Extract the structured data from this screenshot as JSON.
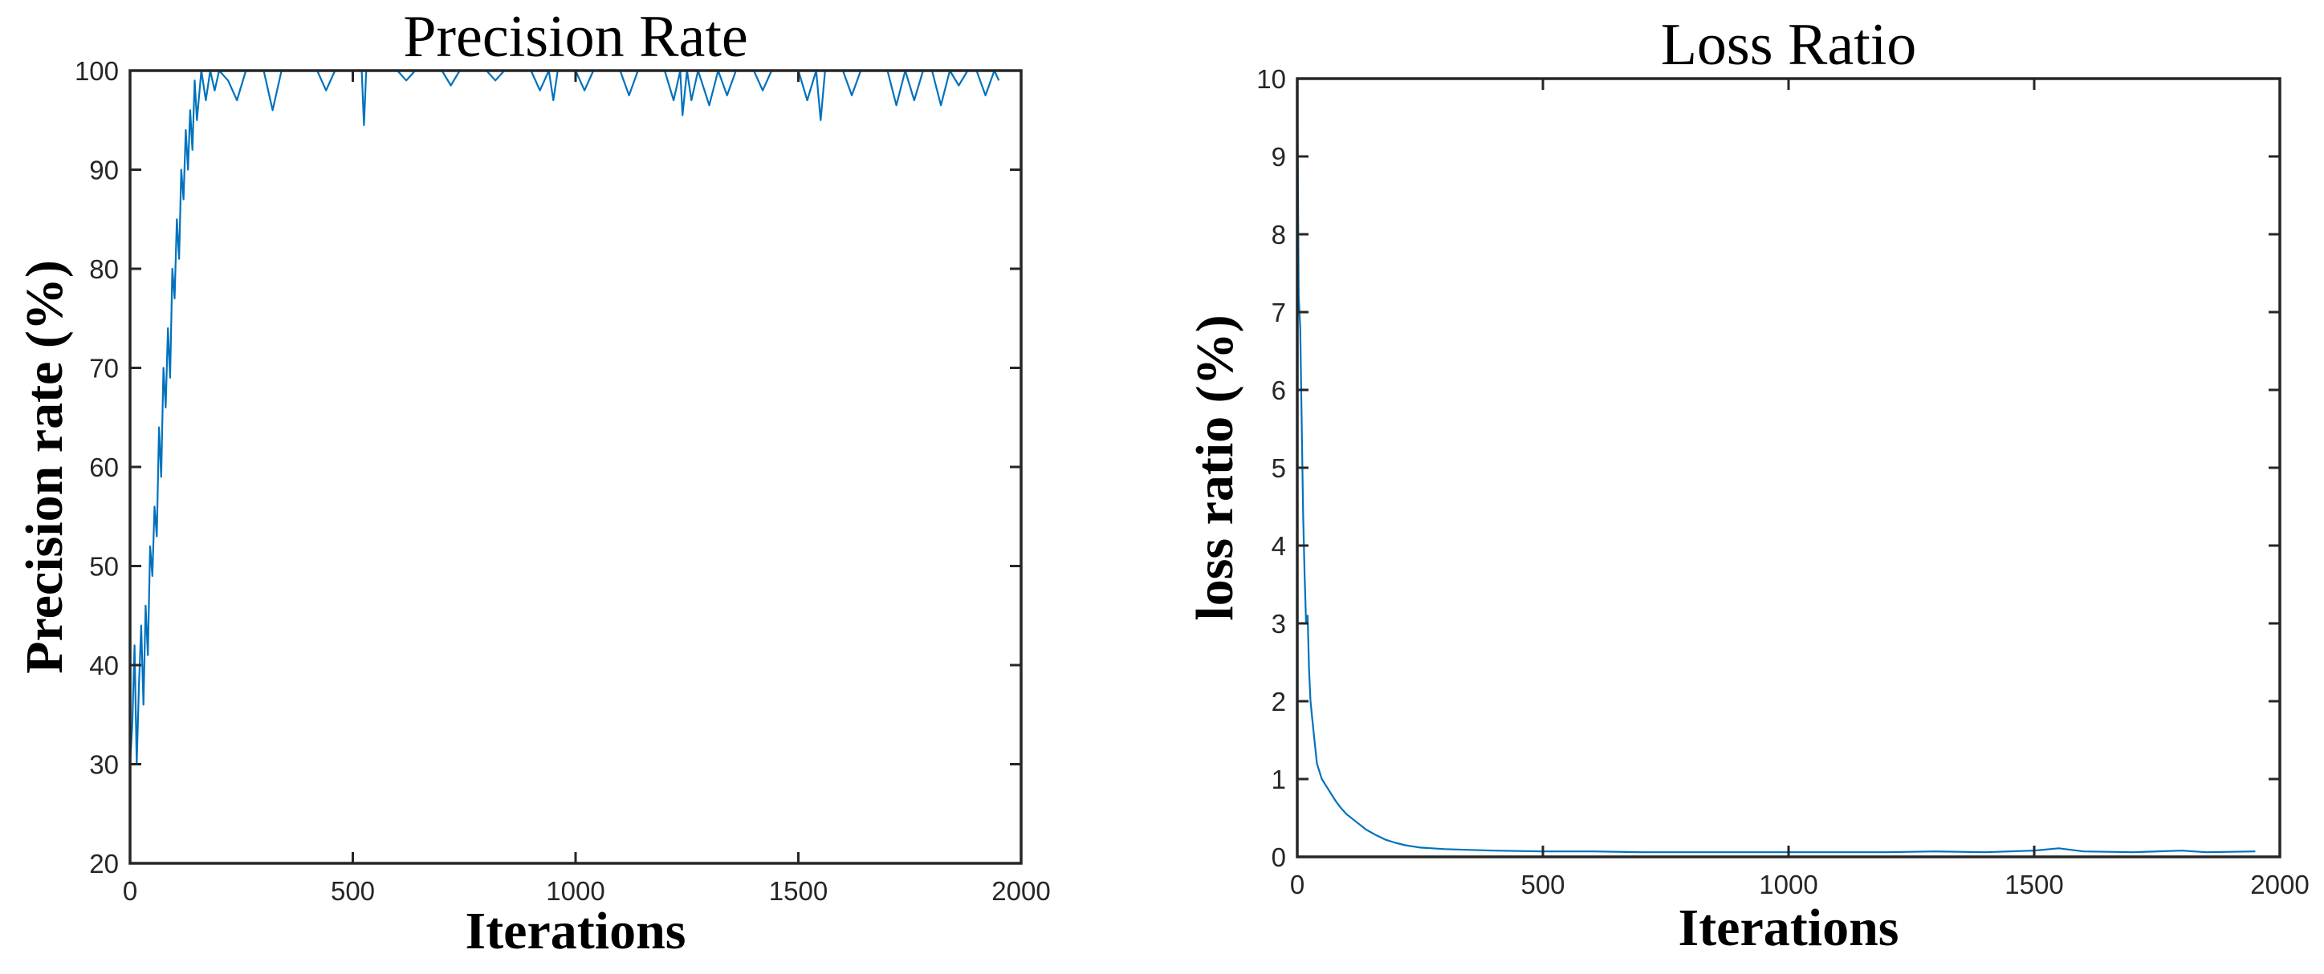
{
  "chart_data": [
    {
      "type": "line",
      "title": "Precision Rate",
      "xlabel": "Iterations",
      "ylabel": "Precision rate (%)",
      "xlim": [
        0,
        2000
      ],
      "ylim": [
        20,
        100
      ],
      "xticks": [
        0,
        500,
        1000,
        1500,
        2000
      ],
      "yticks": [
        20,
        30,
        40,
        50,
        60,
        70,
        80,
        90,
        100
      ],
      "grid": false,
      "series": [
        {
          "color": "#0072BD",
          "x_end": 1950,
          "values": [
            [
              0,
              30
            ],
            [
              5,
              34
            ],
            [
              10,
              42
            ],
            [
              15,
              30
            ],
            [
              20,
              38
            ],
            [
              25,
              44
            ],
            [
              30,
              36
            ],
            [
              35,
              46
            ],
            [
              40,
              41
            ],
            [
              45,
              52
            ],
            [
              50,
              49
            ],
            [
              55,
              56
            ],
            [
              60,
              53
            ],
            [
              65,
              64
            ],
            [
              70,
              59
            ],
            [
              75,
              70
            ],
            [
              80,
              66
            ],
            [
              85,
              74
            ],
            [
              90,
              69
            ],
            [
              95,
              80
            ],
            [
              100,
              77
            ],
            [
              105,
              85
            ],
            [
              110,
              81
            ],
            [
              115,
              90
            ],
            [
              120,
              87
            ],
            [
              125,
              94
            ],
            [
              130,
              90
            ],
            [
              135,
              96
            ],
            [
              140,
              92
            ],
            [
              145,
              99
            ],
            [
              150,
              95
            ],
            [
              160,
              100
            ],
            [
              170,
              97
            ],
            [
              180,
              100
            ],
            [
              190,
              98
            ],
            [
              200,
              100
            ],
            [
              220,
              99
            ],
            [
              240,
              97
            ],
            [
              260,
              100
            ],
            [
              300,
              100
            ],
            [
              320,
              96
            ],
            [
              340,
              100
            ],
            [
              420,
              100
            ],
            [
              440,
              98
            ],
            [
              460,
              100
            ],
            [
              520,
              100
            ],
            [
              525,
              94.5
            ],
            [
              530,
              100
            ],
            [
              600,
              100
            ],
            [
              620,
              99
            ],
            [
              640,
              100
            ],
            [
              700,
              100
            ],
            [
              720,
              98.5
            ],
            [
              740,
              100
            ],
            [
              800,
              100
            ],
            [
              820,
              99
            ],
            [
              840,
              100
            ],
            [
              900,
              100
            ],
            [
              920,
              98
            ],
            [
              940,
              100
            ],
            [
              950,
              97
            ],
            [
              960,
              100
            ],
            [
              1000,
              100
            ],
            [
              1020,
              98
            ],
            [
              1040,
              100
            ],
            [
              1100,
              100
            ],
            [
              1120,
              97.5
            ],
            [
              1140,
              100
            ],
            [
              1200,
              100
            ],
            [
              1220,
              97
            ],
            [
              1235,
              100
            ],
            [
              1240,
              95.5
            ],
            [
              1250,
              100
            ],
            [
              1260,
              97
            ],
            [
              1275,
              100
            ],
            [
              1300,
              96.5
            ],
            [
              1320,
              100
            ],
            [
              1340,
              97.5
            ],
            [
              1360,
              100
            ],
            [
              1400,
              100
            ],
            [
              1420,
              98
            ],
            [
              1440,
              100
            ],
            [
              1500,
              100
            ],
            [
              1520,
              97
            ],
            [
              1540,
              100
            ],
            [
              1550,
              95
            ],
            [
              1560,
              100
            ],
            [
              1600,
              100
            ],
            [
              1620,
              97.5
            ],
            [
              1640,
              100
            ],
            [
              1700,
              100
            ],
            [
              1720,
              96.5
            ],
            [
              1740,
              100
            ],
            [
              1760,
              97
            ],
            [
              1780,
              100
            ],
            [
              1800,
              100
            ],
            [
              1820,
              96.5
            ],
            [
              1840,
              100
            ],
            [
              1860,
              98.5
            ],
            [
              1880,
              100
            ],
            [
              1900,
              100
            ],
            [
              1920,
              97.5
            ],
            [
              1940,
              100
            ],
            [
              1950,
              99
            ]
          ]
        }
      ]
    },
    {
      "type": "line",
      "title": "Loss Ratio",
      "xlabel": "Iterations",
      "ylabel": "loss ratio (%)",
      "xlim": [
        0,
        2000
      ],
      "ylim": [
        0,
        10
      ],
      "xticks": [
        0,
        500,
        1000,
        1500,
        2000
      ],
      "yticks": [
        0,
        1,
        2,
        3,
        4,
        5,
        6,
        7,
        8,
        9,
        10
      ],
      "grid": false,
      "series": [
        {
          "color": "#0072BD",
          "x_end": 1950,
          "values": [
            [
              0,
              10
            ],
            [
              3,
              7.2
            ],
            [
              6,
              6.8
            ],
            [
              9,
              5.6
            ],
            [
              12,
              4.4
            ],
            [
              15,
              3.6
            ],
            [
              18,
              3.0
            ],
            [
              21,
              3.1
            ],
            [
              24,
              2.4
            ],
            [
              27,
              2.0
            ],
            [
              30,
              1.8
            ],
            [
              35,
              1.5
            ],
            [
              40,
              1.2
            ],
            [
              45,
              1.1
            ],
            [
              50,
              1.0
            ],
            [
              60,
              0.9
            ],
            [
              70,
              0.8
            ],
            [
              80,
              0.7
            ],
            [
              90,
              0.62
            ],
            [
              100,
              0.55
            ],
            [
              120,
              0.45
            ],
            [
              140,
              0.35
            ],
            [
              160,
              0.28
            ],
            [
              180,
              0.22
            ],
            [
              200,
              0.18
            ],
            [
              220,
              0.15
            ],
            [
              250,
              0.12
            ],
            [
              300,
              0.1
            ],
            [
              350,
              0.09
            ],
            [
              400,
              0.08
            ],
            [
              500,
              0.07
            ],
            [
              600,
              0.07
            ],
            [
              700,
              0.06
            ],
            [
              800,
              0.06
            ],
            [
              900,
              0.06
            ],
            [
              1000,
              0.06
            ],
            [
              1100,
              0.06
            ],
            [
              1200,
              0.06
            ],
            [
              1300,
              0.07
            ],
            [
              1400,
              0.06
            ],
            [
              1500,
              0.08
            ],
            [
              1550,
              0.11
            ],
            [
              1600,
              0.07
            ],
            [
              1700,
              0.06
            ],
            [
              1800,
              0.08
            ],
            [
              1850,
              0.06
            ],
            [
              1950,
              0.07
            ]
          ]
        }
      ]
    }
  ]
}
